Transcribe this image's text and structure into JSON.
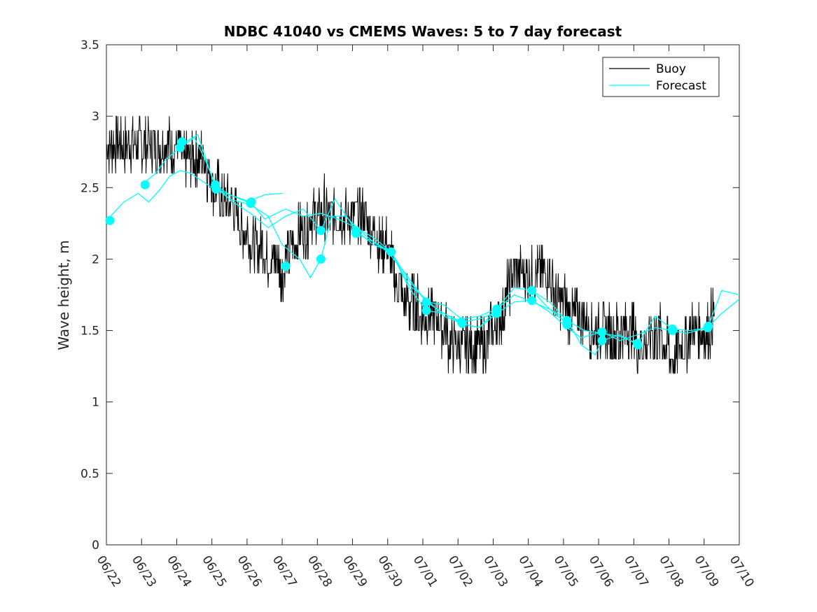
{
  "chart_data": {
    "type": "line",
    "title": "NDBC 41040 vs CMEMS Waves: 5 to 7 day forecast",
    "xlabel": "",
    "ylabel": "Wave height, m",
    "xlim": [
      0,
      18
    ],
    "ylim": [
      0,
      3.5
    ],
    "x_ticks": [
      {
        "value": 0,
        "label": "06/22"
      },
      {
        "value": 1,
        "label": "06/23"
      },
      {
        "value": 2,
        "label": "06/24"
      },
      {
        "value": 3,
        "label": "06/25"
      },
      {
        "value": 4,
        "label": "06/26"
      },
      {
        "value": 5,
        "label": "06/27"
      },
      {
        "value": 6,
        "label": "06/28"
      },
      {
        "value": 7,
        "label": "06/29"
      },
      {
        "value": 8,
        "label": "06/30"
      },
      {
        "value": 9,
        "label": "07/01"
      },
      {
        "value": 10,
        "label": "07/02"
      },
      {
        "value": 11,
        "label": "07/03"
      },
      {
        "value": 12,
        "label": "07/04"
      },
      {
        "value": 13,
        "label": "07/05"
      },
      {
        "value": 14,
        "label": "07/06"
      },
      {
        "value": 15,
        "label": "07/07"
      },
      {
        "value": 16,
        "label": "07/08"
      },
      {
        "value": 17,
        "label": "07/09"
      },
      {
        "value": 18,
        "label": "07/10"
      }
    ],
    "y_ticks": [
      {
        "value": 0,
        "label": "0"
      },
      {
        "value": 0.5,
        "label": "0.5"
      },
      {
        "value": 1,
        "label": "1"
      },
      {
        "value": 1.5,
        "label": "1.5"
      },
      {
        "value": 2,
        "label": "2"
      },
      {
        "value": 2.5,
        "label": "2.5"
      },
      {
        "value": 3,
        "label": "3"
      },
      {
        "value": 3.5,
        "label": "3.5"
      }
    ],
    "grid": false,
    "legend": {
      "position": "top-right",
      "entries": [
        {
          "label": "Buoy",
          "color": "#000000"
        },
        {
          "label": "Forecast",
          "color": "#00ffff"
        }
      ]
    },
    "series": [
      {
        "name": "Buoy",
        "color": "#000000",
        "style": "noisy-line",
        "x": [
          0.0,
          0.3,
          0.6,
          0.9,
          1.2,
          1.5,
          1.8,
          2.1,
          2.4,
          2.7,
          3.0,
          3.3,
          3.6,
          3.9,
          4.2,
          4.5,
          4.8,
          5.0,
          5.3,
          5.6,
          5.9,
          6.2,
          6.5,
          6.8,
          7.1,
          7.4,
          7.7,
          8.0,
          8.3,
          8.6,
          8.9,
          9.2,
          9.5,
          9.8,
          10.1,
          10.4,
          10.7,
          11.0,
          11.3,
          11.6,
          11.9,
          12.2,
          12.5,
          12.8,
          13.1,
          13.4,
          13.7,
          14.0,
          14.3,
          14.6,
          14.9,
          15.2,
          15.5,
          15.8,
          16.1,
          16.4,
          16.7,
          17.0,
          17.3
        ],
        "values": [
          2.75,
          2.8,
          2.8,
          2.78,
          2.85,
          2.8,
          2.75,
          2.75,
          2.7,
          2.75,
          2.55,
          2.4,
          2.35,
          2.2,
          2.1,
          2.05,
          2.0,
          1.9,
          2.1,
          2.2,
          2.3,
          2.35,
          2.3,
          2.3,
          2.35,
          2.25,
          2.15,
          2.05,
          1.8,
          1.65,
          1.65,
          1.6,
          1.55,
          1.4,
          1.35,
          1.4,
          1.4,
          1.5,
          1.65,
          1.95,
          1.9,
          1.9,
          1.95,
          1.7,
          1.65,
          1.6,
          1.55,
          1.5,
          1.45,
          1.45,
          1.5,
          1.4,
          1.45,
          1.45,
          1.3,
          1.4,
          1.5,
          1.45,
          1.6
        ]
      },
      {
        "name": "",
        "color": "#00ffff",
        "x": [
          0.0,
          0.5,
          0.9,
          1.2,
          1.5,
          1.8,
          2.1,
          2.4,
          2.7,
          3.0,
          3.5,
          4.0,
          4.5,
          5.0
        ],
        "values": [
          2.27,
          2.4,
          2.46,
          2.4,
          2.48,
          2.58,
          2.62,
          2.6,
          2.55,
          2.5,
          2.45,
          2.4,
          2.45,
          2.46
        ]
      },
      {
        "name": "",
        "color": "#00ffff",
        "x": [
          1.0,
          1.4,
          1.7,
          2.1,
          2.5,
          2.8,
          3.1,
          3.5,
          4.1,
          4.6,
          5.0,
          5.5,
          5.8,
          6.1,
          6.4,
          6.8,
          7.2,
          7.6,
          8.0,
          8.5,
          9.1,
          9.6,
          10.1,
          10.6,
          11.1
        ],
        "values": [
          2.52,
          2.6,
          2.7,
          2.78,
          2.85,
          2.7,
          2.52,
          2.42,
          2.38,
          2.3,
          2.1,
          2.0,
          1.87,
          2.0,
          2.3,
          2.3,
          2.2,
          2.12,
          2.05,
          1.9,
          1.7,
          1.62,
          1.56,
          1.58,
          1.63
        ]
      },
      {
        "name": "",
        "color": "#00ffff",
        "x": [
          2.1,
          2.6,
          3.1,
          3.6,
          4.1,
          4.6,
          5.1,
          5.6,
          6.1,
          6.5,
          7.1,
          7.6,
          8.1,
          8.6,
          9.1,
          9.6,
          10.1,
          10.6,
          11.1,
          11.6,
          12.1,
          12.6,
          13.1
        ],
        "values": [
          2.8,
          2.87,
          2.5,
          2.4,
          2.32,
          2.22,
          2.3,
          2.35,
          2.2,
          2.42,
          2.2,
          2.1,
          2.05,
          1.85,
          1.7,
          1.68,
          1.58,
          1.6,
          1.65,
          1.75,
          1.7,
          1.65,
          1.55
        ]
      },
      {
        "name": "",
        "color": "#00ffff",
        "x": [
          3.1,
          3.5,
          4.1,
          4.5,
          5.1,
          5.6,
          6.1,
          6.6,
          7.1,
          7.6,
          8.1,
          8.6,
          9.1,
          9.6,
          10.1,
          10.6,
          11.1,
          11.6,
          12.1,
          12.6,
          13.1,
          13.6,
          14.1,
          14.6,
          15.1
        ],
        "values": [
          2.52,
          2.45,
          2.4,
          2.28,
          2.35,
          2.3,
          2.32,
          2.28,
          2.22,
          2.15,
          2.05,
          1.82,
          1.72,
          1.6,
          1.55,
          1.52,
          1.65,
          1.8,
          1.78,
          1.7,
          1.57,
          1.5,
          1.48,
          1.46,
          1.41
        ]
      },
      {
        "name": "",
        "color": "#00ffff",
        "x": [
          7.1,
          7.6,
          8.1,
          8.6,
          9.1,
          9.6,
          10.1,
          10.6,
          11.1,
          11.6,
          12.1,
          12.6,
          13.1,
          13.5,
          14.1,
          14.6,
          15.1,
          15.6,
          16.1,
          16.5,
          17.1,
          17.5,
          18.0
        ],
        "values": [
          2.18,
          2.12,
          2.05,
          1.8,
          1.64,
          1.62,
          1.55,
          1.52,
          1.62,
          1.7,
          1.71,
          1.63,
          1.52,
          1.45,
          1.49,
          1.43,
          1.47,
          1.52,
          1.5,
          1.48,
          1.52,
          1.62,
          1.72
        ]
      },
      {
        "name": "",
        "color": "#00ffff",
        "x": [
          12.1,
          12.6,
          13.1,
          13.5,
          13.9,
          14.1,
          14.6,
          15.1,
          15.6,
          16.1,
          16.6,
          17.1,
          17.5,
          18.0
        ],
        "values": [
          1.78,
          1.65,
          1.58,
          1.4,
          1.33,
          1.43,
          1.47,
          1.4,
          1.6,
          1.51,
          1.5,
          1.52,
          1.78,
          1.75
        ]
      }
    ],
    "markers": {
      "color": "#00ffff",
      "points": [
        {
          "x": 0.1,
          "y": 2.27
        },
        {
          "x": 1.1,
          "y": 2.52
        },
        {
          "x": 2.1,
          "y": 2.78
        },
        {
          "x": 2.15,
          "y": 2.82
        },
        {
          "x": 3.1,
          "y": 2.52
        },
        {
          "x": 3.12,
          "y": 2.49
        },
        {
          "x": 4.1,
          "y": 2.39
        },
        {
          "x": 4.12,
          "y": 2.4
        },
        {
          "x": 5.1,
          "y": 1.95
        },
        {
          "x": 6.1,
          "y": 2.2
        },
        {
          "x": 6.1,
          "y": 2.0
        },
        {
          "x": 7.1,
          "y": 2.2
        },
        {
          "x": 7.1,
          "y": 2.18
        },
        {
          "x": 8.1,
          "y": 2.05
        },
        {
          "x": 9.1,
          "y": 1.7
        },
        {
          "x": 9.1,
          "y": 1.64
        },
        {
          "x": 10.1,
          "y": 1.56
        },
        {
          "x": 10.12,
          "y": 1.55
        },
        {
          "x": 11.1,
          "y": 1.65
        },
        {
          "x": 11.1,
          "y": 1.62
        },
        {
          "x": 12.1,
          "y": 1.78
        },
        {
          "x": 12.1,
          "y": 1.71
        },
        {
          "x": 13.1,
          "y": 1.57
        },
        {
          "x": 13.1,
          "y": 1.54
        },
        {
          "x": 14.1,
          "y": 1.49
        },
        {
          "x": 14.1,
          "y": 1.43
        },
        {
          "x": 15.1,
          "y": 1.41
        },
        {
          "x": 15.12,
          "y": 1.4
        },
        {
          "x": 16.1,
          "y": 1.51
        },
        {
          "x": 16.1,
          "y": 1.5
        },
        {
          "x": 17.1,
          "y": 1.52
        },
        {
          "x": 17.12,
          "y": 1.53
        }
      ]
    }
  }
}
